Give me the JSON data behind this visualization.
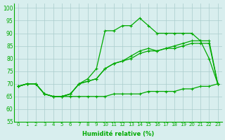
{
  "x_ticks": [
    0,
    1,
    2,
    3,
    4,
    5,
    6,
    7,
    8,
    9,
    10,
    11,
    12,
    13,
    14,
    15,
    16,
    17,
    18,
    19,
    20,
    21,
    22,
    23
  ],
  "ylim": [
    55,
    102
  ],
  "yticks": [
    55,
    60,
    65,
    70,
    75,
    80,
    85,
    90,
    95,
    100
  ],
  "xlabel": "Humidité relative (%)",
  "bg_color": "#d8eeee",
  "grid_color": "#aacccc",
  "line_color": "#00aa00",
  "line_a_y": [
    69,
    70,
    70,
    66,
    65,
    65,
    65,
    65,
    65,
    65,
    65,
    66,
    66,
    66,
    66,
    67,
    67,
    67,
    67,
    68,
    68,
    69,
    69,
    70
  ],
  "line_b_y": [
    69,
    70,
    70,
    66,
    65,
    65,
    66,
    70,
    71,
    72,
    76,
    78,
    79,
    81,
    83,
    84,
    83,
    84,
    85,
    86,
    87,
    87,
    87,
    70
  ],
  "line_c_y": [
    69,
    70,
    70,
    66,
    65,
    65,
    66,
    70,
    71,
    72,
    76,
    78,
    79,
    80,
    82,
    83,
    83,
    84,
    84,
    85,
    86,
    86,
    86,
    70
  ],
  "line_d_y": [
    69,
    70,
    70,
    66,
    65,
    65,
    66,
    70,
    72,
    76,
    91,
    91,
    93,
    93,
    96,
    93,
    90,
    90,
    90,
    90,
    90,
    87,
    80,
    70
  ],
  "marker": "+",
  "marker_size": 3,
  "linewidth": 0.9,
  "figsize": [
    3.2,
    2.0
  ],
  "dpi": 100
}
